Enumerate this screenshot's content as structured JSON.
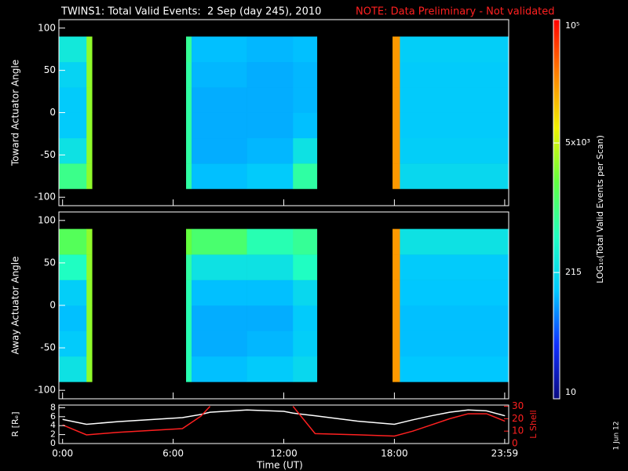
{
  "chart_data": [
    {
      "type": "heatmap",
      "title": "TWINS1: Total Valid Events:  2 Sep (day 245), 2010",
      "note": "NOTE: Data Preliminary - Not validated",
      "ylabel": "Toward Actuator Angle",
      "xlim": [
        -0.2,
        24.2
      ],
      "ylim": [
        -110,
        110
      ],
      "yticks": [
        -100,
        -50,
        0,
        50,
        100
      ],
      "x_edges": [
        -0.2,
        1.3,
        1.6,
        6.7,
        7.0,
        10,
        12.5,
        13.8,
        17.9,
        18.3,
        24.2
      ],
      "y_edges": [
        -90,
        -60,
        -30,
        0,
        30,
        60,
        90
      ],
      "z": [
        [
          900,
          3000,
          null,
          700,
          130,
          150,
          700,
          null,
          20000,
          200
        ],
        [
          250,
          3000,
          null,
          700,
          110,
          120,
          250,
          null,
          20000,
          160
        ],
        [
          150,
          3000,
          null,
          700,
          110,
          110,
          130,
          null,
          20000,
          150
        ],
        [
          150,
          3000,
          null,
          700,
          110,
          110,
          120,
          null,
          20000,
          150
        ],
        [
          180,
          3000,
          null,
          700,
          120,
          110,
          120,
          null,
          20000,
          150
        ],
        [
          300,
          3000,
          null,
          800,
          130,
          120,
          130,
          null,
          20000,
          160
        ]
      ],
      "colorbar": {
        "label": "LOG₁₀(Total Valid Events per Scan)",
        "log": true,
        "lim": [
          10,
          100000
        ],
        "ticks": [
          10,
          215,
          {
            "value": 5000,
            "label": "5x10³"
          },
          {
            "value": 100000,
            "label": "10⁵"
          }
        ],
        "colormap": [
          "#0a0a80",
          "#1030ff",
          "#00c8ff",
          "#20ffc0",
          "#60ff40",
          "#f0f000",
          "#ff8000",
          "#ff0000"
        ]
      }
    },
    {
      "type": "heatmap",
      "ylabel": "Away Actuator Angle",
      "xlim": [
        -0.2,
        24.2
      ],
      "ylim": [
        -110,
        110
      ],
      "yticks": [
        -100,
        -50,
        0,
        50,
        100
      ],
      "x_edges": [
        -0.2,
        1.3,
        1.6,
        6.7,
        7.0,
        10,
        12.5,
        13.8,
        17.9,
        18.3,
        24.2
      ],
      "y_edges": [
        -90,
        -60,
        -30,
        0,
        30,
        60,
        90
      ],
      "z": [
        [
          250,
          3000,
          null,
          600,
          130,
          150,
          200,
          null,
          20000,
          140
        ],
        [
          150,
          3000,
          null,
          600,
          110,
          120,
          160,
          null,
          20000,
          130
        ],
        [
          130,
          3000,
          null,
          600,
          110,
          110,
          150,
          null,
          20000,
          130
        ],
        [
          160,
          3000,
          null,
          600,
          130,
          130,
          200,
          null,
          20000,
          140
        ],
        [
          500,
          3000,
          null,
          700,
          250,
          250,
          500,
          null,
          20000,
          150
        ],
        [
          1500,
          3000,
          null,
          2000,
          1200,
          600,
          800,
          null,
          20000,
          250
        ]
      ]
    },
    {
      "type": "line",
      "xlabel": "Time (UT)",
      "ylabel": "R [Rₑ]",
      "y2label": "L Shell",
      "xlim": [
        -0.2,
        24.2
      ],
      "xticks": [
        {
          "value": 0,
          "label": "0:00"
        },
        {
          "value": 6,
          "label": "6:00"
        },
        {
          "value": 12,
          "label": "12:00"
        },
        {
          "value": 18,
          "label": "18:00"
        },
        {
          "value": 23.983,
          "label": "23:59"
        }
      ],
      "ylim": [
        0,
        8.6
      ],
      "yticks": [
        0,
        2,
        4,
        6,
        8
      ],
      "y2lim": [
        0,
        31
      ],
      "y2ticks": [
        0,
        10,
        20,
        30
      ],
      "y2color": "#ff2020",
      "x": [
        0,
        1.3,
        3,
        6.5,
        7.5,
        8,
        10,
        12,
        12.5,
        13.7,
        16,
        18,
        19,
        20,
        21,
        22,
        23,
        24
      ],
      "series": [
        {
          "color": "#ffffff",
          "values": [
            5.4,
            4.3,
            4.9,
            5.8,
            6.5,
            7.0,
            7.5,
            7.2,
            6.8,
            6.2,
            5.0,
            4.3,
            5.3,
            6.2,
            7.0,
            7.5,
            7.3,
            6.2
          ]
        },
        {
          "color": "#ff2020",
          "axis": "y2",
          "values": [
            15,
            7,
            9,
            12,
            22,
            30,
            null,
            null,
            30,
            8,
            7,
            6,
            10,
            15,
            20,
            24,
            24,
            18
          ]
        }
      ]
    }
  ],
  "footnote": "1 Jun 12"
}
